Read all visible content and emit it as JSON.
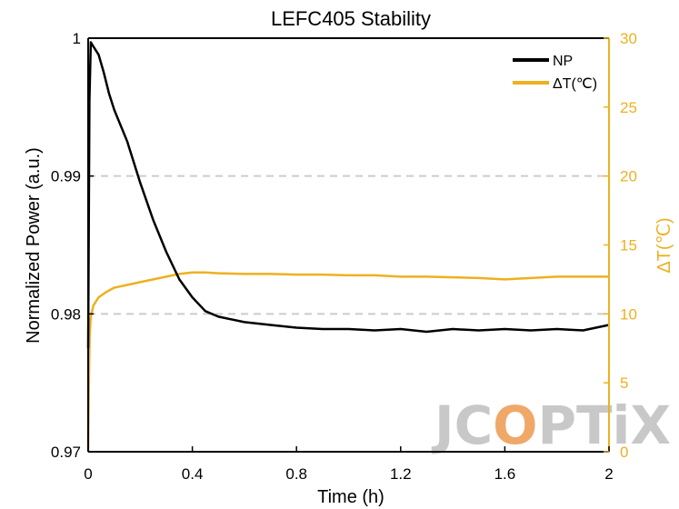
{
  "chart_data": {
    "type": "line",
    "title": "LEFC405 Stability",
    "xlabel": "Time (h)",
    "ylabel_left": "Normalized Power (a.u.)",
    "ylabel_right": "ΔT(℃)",
    "x_ticks": [
      "0",
      "0.4",
      "0.8",
      "1.2",
      "1.6",
      "2"
    ],
    "x_tick_values": [
      0,
      0.4,
      0.8,
      1.2,
      1.6,
      2
    ],
    "xlim": [
      0,
      2
    ],
    "y_left_ticks": [
      "0.97",
      "0.98",
      "0.99",
      "1"
    ],
    "y_left_tick_values": [
      0.97,
      0.98,
      0.99,
      1.0
    ],
    "ylim_left": [
      0.97,
      1.0
    ],
    "y_right_ticks": [
      "0",
      "5",
      "10",
      "15",
      "20",
      "25",
      "30"
    ],
    "y_right_tick_values": [
      0,
      5,
      10,
      15,
      20,
      25,
      30
    ],
    "ylim_right": [
      0,
      30
    ],
    "grid": "dashed horizontal at 0.98 and 0.99",
    "legend_position": "top-right",
    "colors": {
      "np": "#000000",
      "dt": "#EDB120",
      "grid": "#cccccc",
      "watermark": "#c8c8c8",
      "watermark_accent": "#f0a868"
    },
    "series": [
      {
        "name": "NP",
        "axis": "left",
        "x": [
          0,
          0.005,
          0.01,
          0.02,
          0.04,
          0.06,
          0.08,
          0.1,
          0.15,
          0.2,
          0.25,
          0.3,
          0.35,
          0.4,
          0.45,
          0.5,
          0.6,
          0.7,
          0.8,
          0.9,
          1.0,
          1.1,
          1.2,
          1.3,
          1.4,
          1.5,
          1.6,
          1.7,
          1.8,
          1.9,
          2.0
        ],
        "values": [
          0.9775,
          0.9955,
          0.9997,
          0.9994,
          0.9988,
          0.9975,
          0.996,
          0.9948,
          0.9925,
          0.9895,
          0.9868,
          0.9845,
          0.9825,
          0.9812,
          0.9802,
          0.9798,
          0.9794,
          0.9792,
          0.979,
          0.9789,
          0.9789,
          0.9788,
          0.9789,
          0.9787,
          0.9789,
          0.9788,
          0.9789,
          0.9788,
          0.9789,
          0.9788,
          0.9792
        ]
      },
      {
        "name": "ΔT(℃)",
        "axis": "right",
        "x": [
          0,
          0.003,
          0.006,
          0.01,
          0.02,
          0.04,
          0.07,
          0.1,
          0.15,
          0.2,
          0.25,
          0.3,
          0.35,
          0.4,
          0.45,
          0.5,
          0.6,
          0.7,
          0.8,
          0.9,
          1.0,
          1.1,
          1.2,
          1.3,
          1.4,
          1.5,
          1.6,
          1.7,
          1.8,
          1.9,
          2.0
        ],
        "values": [
          0,
          5.5,
          8.5,
          9.8,
          10.6,
          11.2,
          11.6,
          11.9,
          12.1,
          12.3,
          12.5,
          12.7,
          12.9,
          13.0,
          13.0,
          12.95,
          12.9,
          12.9,
          12.85,
          12.85,
          12.8,
          12.8,
          12.7,
          12.7,
          12.65,
          12.6,
          12.5,
          12.6,
          12.7,
          12.7,
          12.7
        ]
      }
    ],
    "watermark": {
      "part1": "JC",
      "part2": "O",
      "part3": "PTiX"
    }
  }
}
